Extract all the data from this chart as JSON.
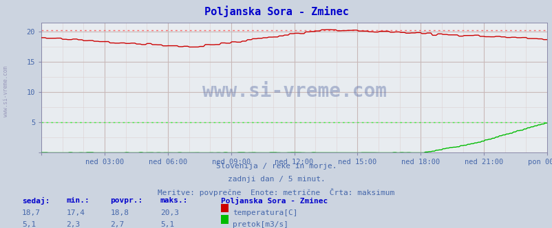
{
  "title": "Poljanska Sora - Zminec",
  "bg_color": "#ccd4e0",
  "plot_bg_color": "#e8ecf0",
  "grid_color_v": "#c8b8b8",
  "grid_color_h": "#c8b8b8",
  "grid_minor_color": "#ddd0d0",
  "x_labels": [
    "ned 03:00",
    "ned 06:00",
    "ned 09:00",
    "ned 12:00",
    "ned 15:00",
    "ned 18:00",
    "ned 21:00",
    "pon 00:00"
  ],
  "y_ticks": [
    0,
    5,
    10,
    15,
    20
  ],
  "ylim": [
    0,
    21.5
  ],
  "temp_color": "#cc0000",
  "flow_color": "#00bb00",
  "temp_max": 20.3,
  "flow_max": 5.1,
  "subtitle1": "Slovenija / reke in morje.",
  "subtitle2": "zadnji dan / 5 minut.",
  "subtitle3": "Meritve: povprečne  Enote: metrične  Črta: maksimum",
  "footer_label": "Poljanska Sora - Zminec",
  "temp_sedaj": "18,7",
  "temp_min": "17,4",
  "temp_povpr": "18,8",
  "temp_maks": "20,3",
  "flow_sedaj": "5,1",
  "flow_min": "2,3",
  "flow_povpr": "2,7",
  "flow_maks": "5,1",
  "legend_temp": "temperatura[C]",
  "legend_flow": "pretok[m3/s]",
  "watermark": "www.si-vreme.com",
  "left_label": "www.si-vreme.com",
  "n_points": 288,
  "footer_color": "#4466aa",
  "header_color": "#0000cc",
  "title_color": "#0000cc"
}
